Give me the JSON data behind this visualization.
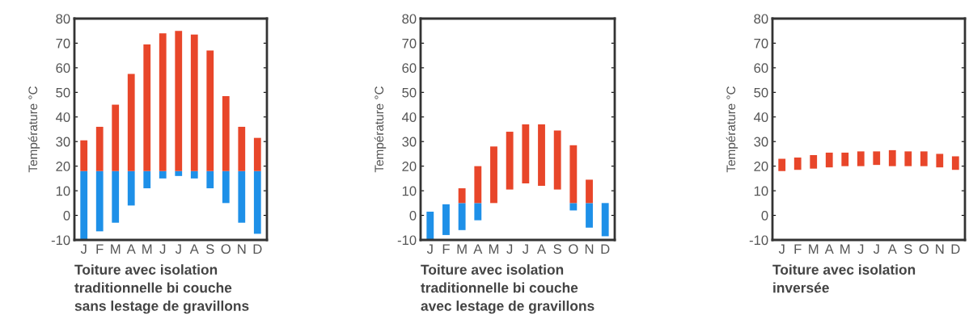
{
  "chart_data": [
    {
      "type": "bar",
      "title": "Toiture avec isolation\ntraditionnelle bi couche\nsans lestage de gravillons",
      "ylabel": "Température °C",
      "categories": [
        "J",
        "F",
        "M",
        "A",
        "M",
        "J",
        "J",
        "A",
        "S",
        "O",
        "N",
        "D"
      ],
      "series": [
        {
          "color": "#1e90e8",
          "base": [
            -10,
            -6.5,
            -3,
            4,
            11,
            15,
            16,
            15,
            11,
            5,
            -3,
            -7.5
          ],
          "values": [
            28,
            24.5,
            21,
            14,
            7,
            3,
            2,
            3,
            7,
            13,
            21,
            25.5
          ]
        },
        {
          "color": "#e8462a",
          "base": [
            18,
            18,
            18,
            18,
            18,
            18,
            18,
            18,
            18,
            18,
            18,
            18
          ],
          "values": [
            12.5,
            18,
            27,
            39.5,
            51.5,
            56,
            57,
            55.5,
            49,
            30.5,
            18,
            13.5
          ]
        }
      ],
      "ylim": [
        -10,
        80
      ],
      "yticks": [
        -10,
        0,
        10,
        20,
        30,
        40,
        50,
        60,
        70,
        80
      ],
      "grid": false,
      "legend": false
    },
    {
      "type": "bar",
      "title": "Toiture avec isolation\ntraditionnelle bi couche\navec lestage de gravillons",
      "ylabel": "Température °C",
      "categories": [
        "J",
        "F",
        "M",
        "A",
        "M",
        "J",
        "J",
        "A",
        "S",
        "O",
        "N",
        "D"
      ],
      "series": [
        {
          "color": "#1e90e8",
          "base": [
            -10,
            -8,
            -6,
            -2,
            null,
            null,
            null,
            null,
            null,
            2,
            -5,
            -8.5
          ],
          "values": [
            11.5,
            12.5,
            11,
            7,
            null,
            null,
            null,
            null,
            null,
            3,
            10,
            13.5
          ]
        },
        {
          "color": "#e8462a",
          "base": [
            null,
            null,
            5,
            5,
            5,
            10.5,
            13,
            12,
            10.5,
            5,
            5,
            null
          ],
          "values": [
            null,
            null,
            6,
            15,
            23,
            23.5,
            24,
            25,
            24,
            23.5,
            9.5,
            null
          ]
        }
      ],
      "ylim": [
        -10,
        80
      ],
      "yticks": [
        -10,
        0,
        10,
        20,
        30,
        40,
        50,
        60,
        70,
        80
      ],
      "grid": false,
      "legend": false
    },
    {
      "type": "bar",
      "title": "Toiture avec isolation\ninversée",
      "ylabel": "Température °C",
      "categories": [
        "J",
        "F",
        "M",
        "A",
        "M",
        "J",
        "J",
        "A",
        "S",
        "O",
        "N",
        "D"
      ],
      "series": [
        {
          "color": "#e8462a",
          "base": [
            18,
            18.5,
            19,
            19.5,
            20,
            20,
            20.5,
            20,
            20,
            20,
            19.5,
            18.5
          ],
          "values": [
            5,
            5,
            5.5,
            6,
            5.5,
            6,
            5.5,
            6.5,
            6,
            6,
            5.5,
            5.5
          ]
        }
      ],
      "ylim": [
        -10,
        80
      ],
      "yticks": [
        -10,
        0,
        10,
        20,
        30,
        40,
        50,
        60,
        70,
        80
      ],
      "grid": false,
      "legend": false
    }
  ]
}
